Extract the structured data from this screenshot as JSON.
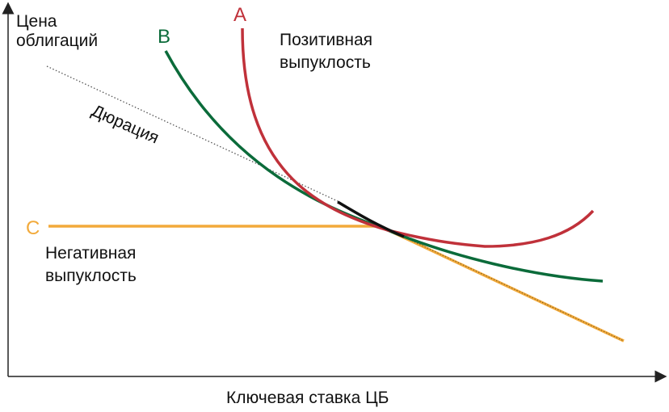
{
  "axes": {
    "y_label_line1": "Цена",
    "y_label_line2": "облигаций",
    "x_label": "Ключевая ставка ЦБ"
  },
  "curves": {
    "a": {
      "letter": "A",
      "color": "#c0313a"
    },
    "b": {
      "letter": "B",
      "color": "#0b6b3a"
    },
    "c": {
      "letter": "C",
      "color": "#f2aa3b"
    }
  },
  "annotations": {
    "positive_line1": "Позитивная",
    "positive_line2": "выпуклость",
    "negative_line1": "Негативная",
    "negative_line2": "выпуклость",
    "duration": "Дюрация"
  },
  "colors": {
    "axis": "#222222",
    "duration_line": "#555555",
    "tangent_segment": "#111111"
  }
}
